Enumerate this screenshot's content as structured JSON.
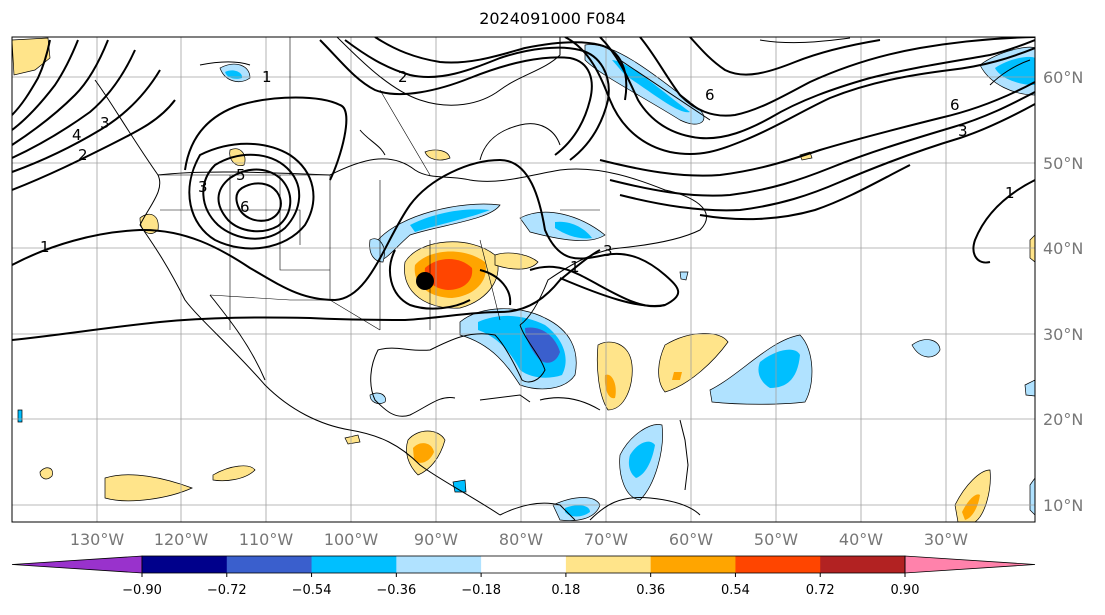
{
  "title": "2024091000 F084",
  "longitude_labels": [
    "130°W",
    "120°W",
    "110°W",
    "100°W",
    "90°W",
    "80°W",
    "70°W",
    "60°W",
    "50°W",
    "40°W",
    "30°W"
  ],
  "latitude_labels": [
    "60°N",
    "50°N",
    "40°N",
    "30°N",
    "20°N",
    "10°N"
  ],
  "contour_labels": [
    "1",
    "2",
    "3",
    "4",
    "5",
    "6"
  ],
  "colorbar": {
    "tick_labels": [
      "−0.90",
      "−0.72",
      "−0.54",
      "−0.36",
      "−0.18",
      "0.18",
      "0.36",
      "0.54",
      "0.72",
      "0.90"
    ],
    "colors": [
      "#9932cc",
      "#00008b",
      "#3a5fcd",
      "#00bfff",
      "#b0e2ff",
      "#ffffff",
      "#ffe48a",
      "#ffa500",
      "#ff4500",
      "#b22222",
      "#ff82ab"
    ]
  },
  "marker": {
    "label": "storm-center",
    "color": "#000000"
  }
}
